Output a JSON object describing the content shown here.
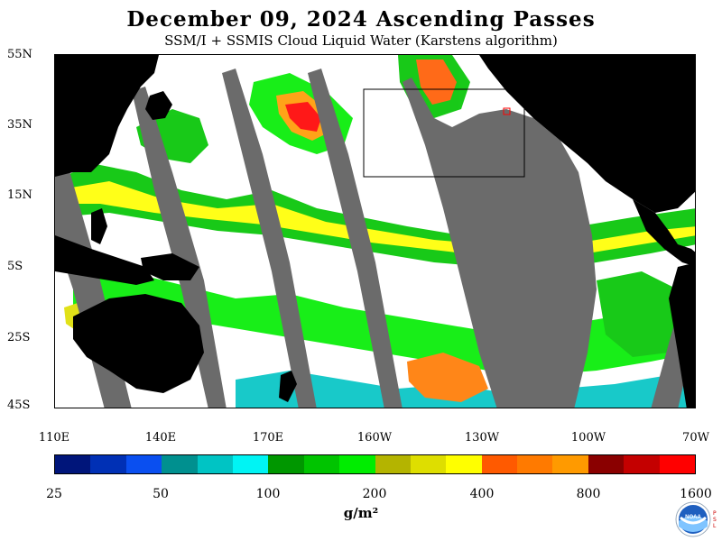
{
  "title": "December 09, 2024  Ascending Passes",
  "subtitle": "SSM/I + SSMIS Cloud Liquid Water (Karstens algorithm)",
  "lat_labels": [
    "55N",
    "35N",
    "15N",
    "5S",
    "25S",
    "45S"
  ],
  "lon_labels": [
    "110E",
    "140E",
    "170E",
    "160W",
    "130W",
    "100W",
    "70W"
  ],
  "colorbar": {
    "colors": [
      "#00157a",
      "#0030b5",
      "#0a4ff0",
      "#00908f",
      "#00c4c4",
      "#00f4f4",
      "#009700",
      "#00c400",
      "#00ed00",
      "#b4b400",
      "#dede00",
      "#ffff00",
      "#ff5a00",
      "#ff7a00",
      "#ff9a00",
      "#8a0000",
      "#c40000",
      "#ff0000"
    ],
    "labels": [
      "25",
      "50",
      "100",
      "200",
      "400",
      "800",
      "1600"
    ]
  },
  "unit_label": "g/m²",
  "logo_text": "NOAA",
  "psl_text": "PSL",
  "colors": {
    "land": "#000000",
    "no_data_gap": "#6b6b6b",
    "clear_ocean": "#ffffff",
    "region_box": "#000000"
  }
}
